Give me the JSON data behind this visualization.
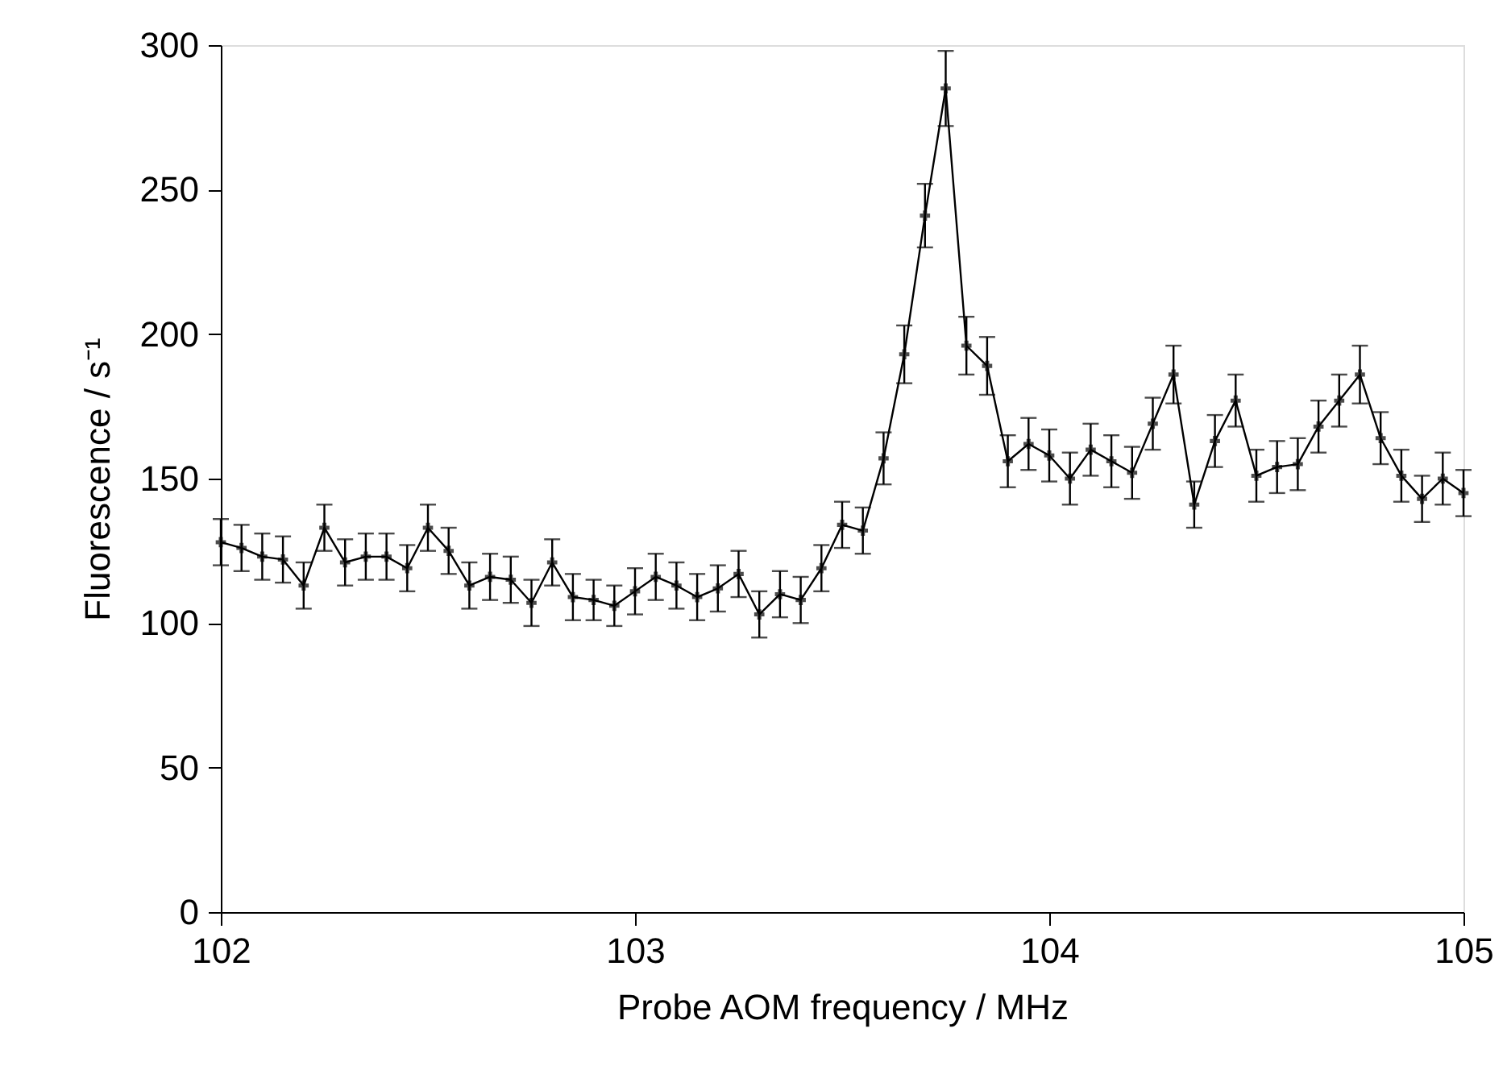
{
  "chart_data": {
    "type": "line",
    "xlabel": "Probe AOM frequency / MHz",
    "ylabel": "Fluorescence / s⁻¹",
    "x": [
      102,
      102.05,
      102.1,
      102.15,
      102.2,
      102.25,
      102.3,
      102.35,
      102.4,
      102.45,
      102.5,
      102.55,
      102.6,
      102.65,
      102.7,
      102.75,
      102.8,
      102.85,
      102.9,
      102.95,
      103,
      103.05,
      103.1,
      103.15,
      103.2,
      103.25,
      103.3,
      103.35,
      103.4,
      103.45,
      103.5,
      103.55,
      103.6,
      103.65,
      103.7,
      103.75,
      103.8,
      103.85,
      103.9,
      103.95,
      104,
      104.05,
      104.1,
      104.15,
      104.2,
      104.25,
      104.3,
      104.35,
      104.4,
      104.45,
      104.5,
      104.55,
      104.6,
      104.65,
      104.7,
      104.75,
      104.8,
      104.85,
      104.9,
      104.95,
      105
    ],
    "series": [
      {
        "color": "#000000",
        "values": [
          128,
          126,
          123,
          122,
          113,
          133,
          121,
          123,
          123,
          119,
          133,
          125,
          113,
          116,
          115,
          107,
          121,
          109,
          108,
          106,
          111,
          116,
          113,
          109,
          112,
          117,
          103,
          110,
          108,
          119,
          134,
          132,
          157,
          193,
          241,
          285,
          196,
          189,
          156,
          162,
          158,
          150,
          160,
          156,
          152,
          169,
          186,
          141,
          163,
          177,
          151,
          154,
          155,
          168,
          177,
          186,
          164,
          151,
          143,
          150,
          145
        ],
        "errors": [
          8,
          8,
          8,
          8,
          8,
          8,
          8,
          8,
          8,
          8,
          8,
          8,
          8,
          8,
          8,
          8,
          8,
          8,
          7,
          7,
          8,
          8,
          8,
          8,
          8,
          8,
          8,
          8,
          8,
          8,
          8,
          8,
          9,
          10,
          11,
          13,
          10,
          10,
          9,
          9,
          9,
          9,
          9,
          9,
          9,
          9,
          10,
          8,
          9,
          9,
          9,
          9,
          9,
          9,
          9,
          10,
          9,
          9,
          8,
          9,
          8
        ]
      }
    ],
    "xlim": [
      102,
      105
    ],
    "xticks": [
      102,
      103,
      104,
      105
    ],
    "ylim": [
      0,
      300
    ],
    "yticks": [
      0,
      50,
      100,
      150,
      200,
      250,
      300
    ],
    "grid": false,
    "marker": "cross",
    "line_style": "solid"
  }
}
